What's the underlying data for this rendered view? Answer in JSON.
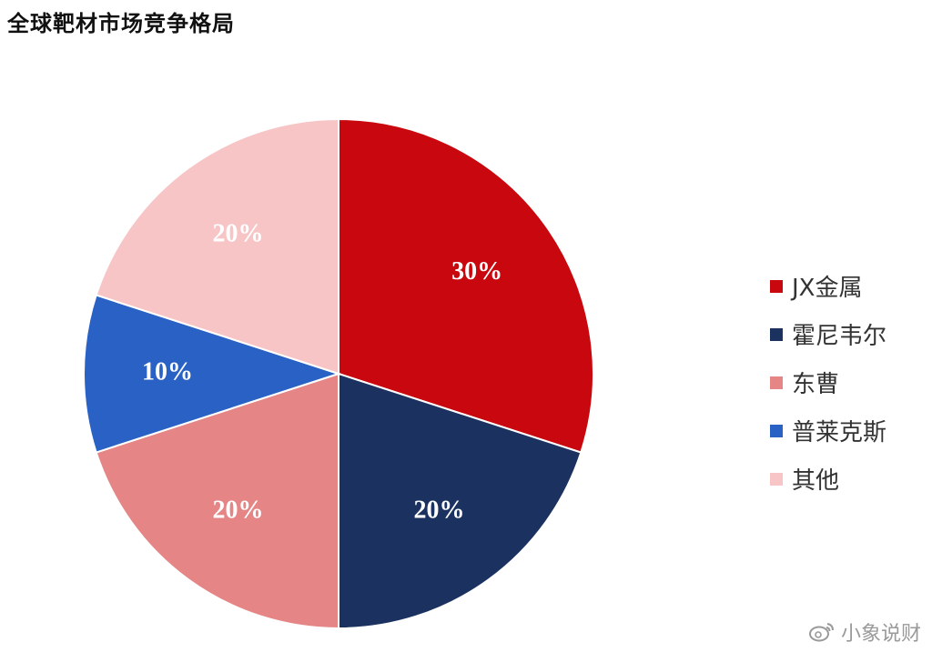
{
  "chart_data": {
    "type": "pie",
    "title": "全球靶材市场竞争格局",
    "slices": [
      {
        "label": "JX金属",
        "value": 30,
        "display": "30%",
        "color": "#c8070e"
      },
      {
        "label": "霍尼韦尔",
        "value": 20,
        "display": "20%",
        "color": "#1b3261"
      },
      {
        "label": "东曹",
        "value": 20,
        "display": "20%",
        "color": "#e58586"
      },
      {
        "label": "普莱克斯",
        "value": 10,
        "display": "10%",
        "color": "#2962c4"
      },
      {
        "label": "其他",
        "value": 20,
        "display": "20%",
        "color": "#f7c5c6"
      }
    ],
    "legend_position": "right"
  },
  "watermark": {
    "text": "小象说财",
    "icon": "weibo-icon"
  }
}
